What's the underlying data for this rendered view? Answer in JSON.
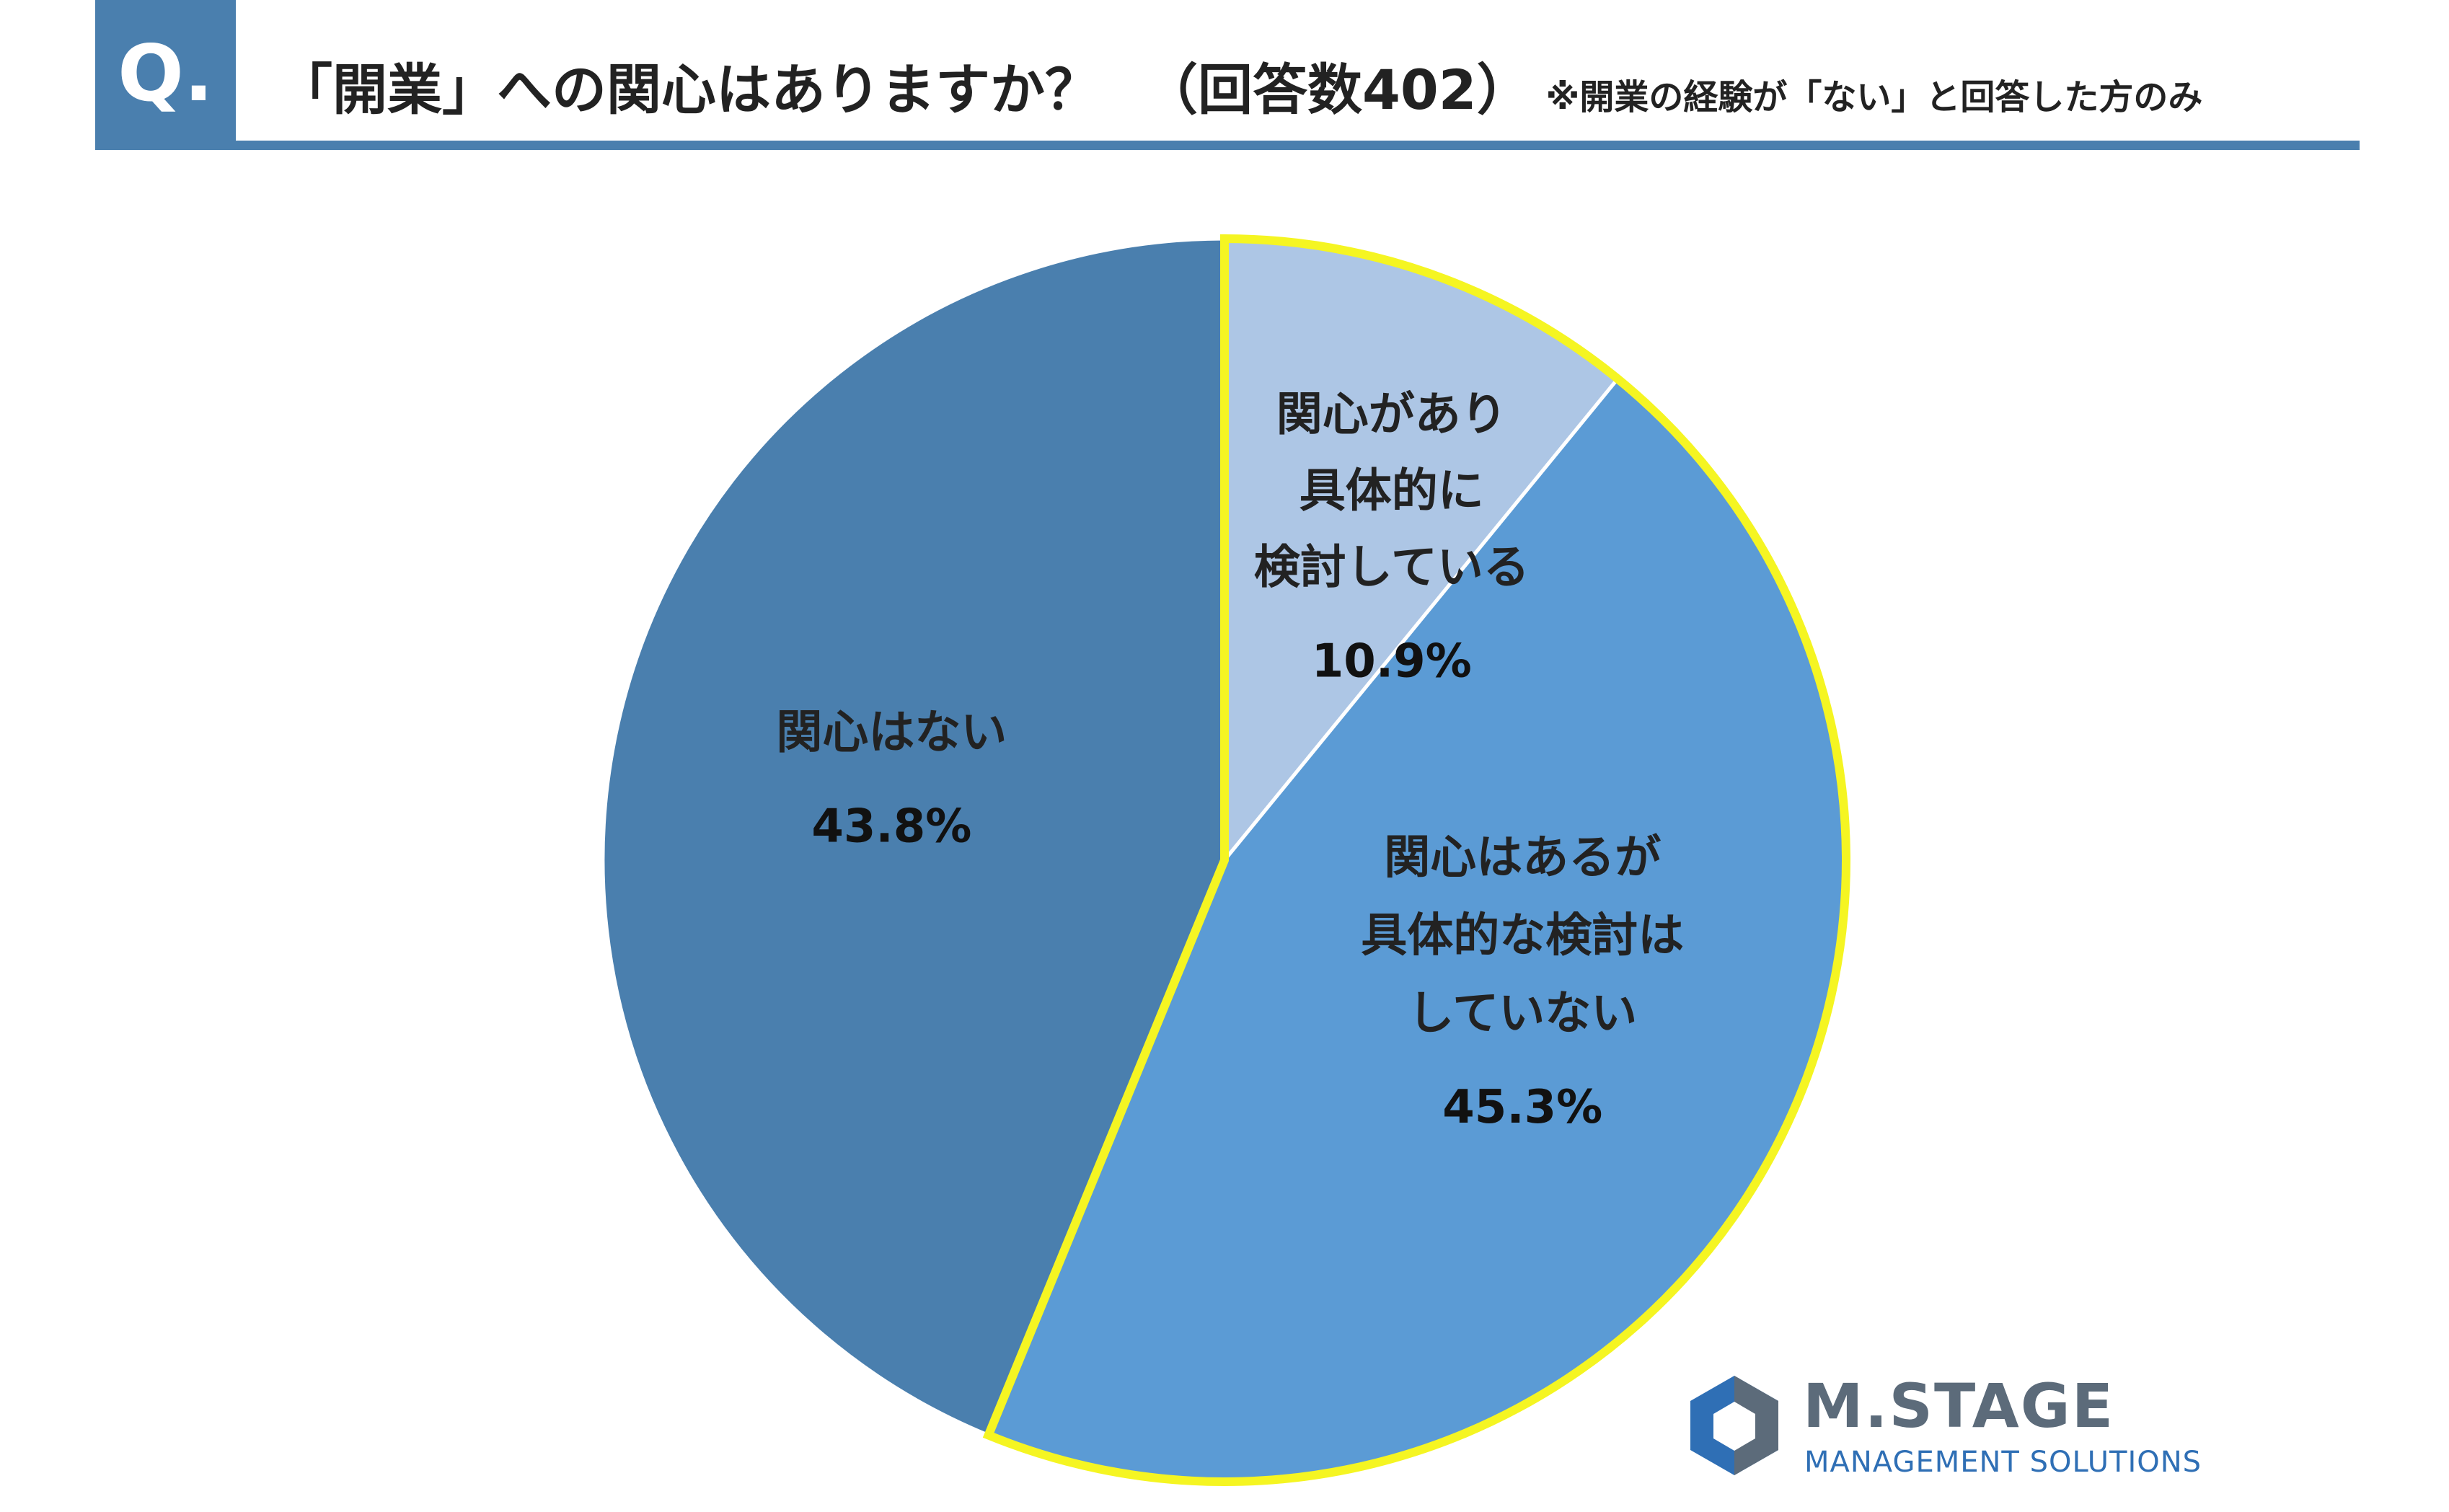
{
  "header": {
    "badge": "Q.",
    "question": "「開業」への関心はありますか？",
    "response_count": "（回答数402）",
    "note": "※開業の経験が「ない」と回答した方のみ"
  },
  "chart_data": {
    "type": "pie",
    "title": "「開業」への関心はありますか？",
    "total_responses": 402,
    "slices": [
      {
        "label_lines": [
          "関心があり",
          "具体的に",
          "検討している"
        ],
        "value": 10.9,
        "value_label": "10.9%",
        "color": "#adc6e5",
        "highlight": true
      },
      {
        "label_lines": [
          "関心はあるが",
          "具体的な検討は",
          "していない"
        ],
        "value": 45.3,
        "value_label": "45.3%",
        "color": "#5b9bd5",
        "highlight": true
      },
      {
        "label_lines": [
          "関心はない"
        ],
        "value": 43.8,
        "value_label": "43.8%",
        "color": "#4a7fae",
        "highlight": false
      }
    ],
    "start_angle": "12 o'clock",
    "direction": "clockwise",
    "highlight_color": "#f5f522",
    "legend": "none"
  },
  "logo": {
    "name": "M.STAGE",
    "subtitle": "MANAGEMENT SOLUTIONS",
    "color_primary": "#2f6fb5",
    "color_secondary": "#5c6b7a"
  }
}
